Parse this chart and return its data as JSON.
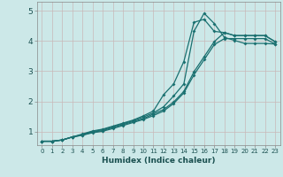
{
  "xlabel": "Humidex (Indice chaleur)",
  "xlim": [
    -0.5,
    23.5
  ],
  "ylim": [
    0.55,
    5.3
  ],
  "yticks": [
    1,
    2,
    3,
    4,
    5
  ],
  "xticks": [
    0,
    1,
    2,
    3,
    4,
    5,
    6,
    7,
    8,
    9,
    10,
    11,
    12,
    13,
    14,
    15,
    16,
    17,
    18,
    19,
    20,
    21,
    22,
    23
  ],
  "bg_color": "#cce8e8",
  "grid_color": "#c8b8b8",
  "line_color": "#1a7070",
  "lines": [
    [
      0.68,
      0.68,
      0.72,
      0.82,
      0.92,
      1.02,
      1.08,
      1.18,
      1.28,
      1.38,
      1.52,
      1.68,
      2.22,
      2.58,
      3.32,
      4.62,
      4.72,
      4.32,
      4.28,
      4.18,
      4.18,
      4.18,
      4.18,
      3.98
    ],
    [
      0.68,
      0.68,
      0.72,
      0.82,
      0.9,
      1.0,
      1.06,
      1.16,
      1.26,
      1.36,
      1.48,
      1.62,
      1.82,
      2.18,
      2.58,
      4.32,
      4.92,
      4.58,
      4.12,
      4.02,
      3.92,
      3.92,
      3.92,
      3.9
    ],
    [
      0.68,
      0.68,
      0.72,
      0.82,
      0.88,
      0.98,
      1.03,
      1.13,
      1.23,
      1.33,
      1.43,
      1.58,
      1.73,
      1.98,
      2.33,
      2.98,
      3.48,
      3.98,
      4.28,
      4.18,
      4.18,
      4.18,
      4.18,
      3.98
    ],
    [
      0.68,
      0.68,
      0.72,
      0.82,
      0.88,
      0.96,
      1.01,
      1.1,
      1.2,
      1.3,
      1.4,
      1.53,
      1.68,
      1.93,
      2.28,
      2.88,
      3.38,
      3.88,
      4.08,
      4.08,
      4.08,
      4.08,
      4.08,
      3.9
    ]
  ]
}
